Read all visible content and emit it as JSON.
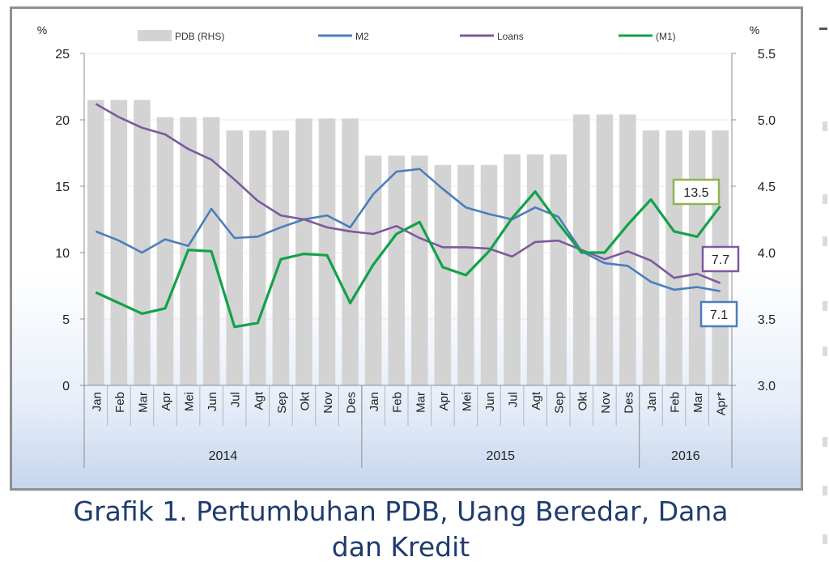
{
  "chart_data": {
    "type": "bar+line",
    "caption_line1": "Grafik 1.  Pertumbuhan PDB, Uang Beredar, Dana",
    "caption_line2": "dan Kredit",
    "y_left_unit": "%",
    "y_right_unit": "%",
    "y_left_range": [
      0,
      25
    ],
    "y_left_ticks": [
      "0",
      "5",
      "10",
      "15",
      "20",
      "25"
    ],
    "y_right_range": [
      3.0,
      5.5
    ],
    "y_right_ticks": [
      "3.0",
      "3.5",
      "4.0",
      "4.5",
      "5.0",
      "5.5"
    ],
    "months": [
      "Jan",
      "Feb",
      "Mar",
      "Apr",
      "Mei",
      "Jun",
      "Jul",
      "Agt",
      "Sep",
      "Okt",
      "Nov",
      "Des",
      "Jan",
      "Feb",
      "Mar",
      "Apr",
      "Mei",
      "Jun",
      "Jul",
      "Agt",
      "Sep",
      "Okt",
      "Nov",
      "Des",
      "Jan",
      "Feb",
      "Mar",
      "Apr*"
    ],
    "years": [
      {
        "label": "2014",
        "count": 12
      },
      {
        "label": "2015",
        "count": 12
      },
      {
        "label": "2016",
        "count": 4
      }
    ],
    "bars": {
      "name": "PDB (RHS)",
      "color": "#d3d3d3",
      "values": [
        5.15,
        5.15,
        5.15,
        5.02,
        5.02,
        5.02,
        4.92,
        4.92,
        4.92,
        5.01,
        5.01,
        5.01,
        4.73,
        4.73,
        4.73,
        4.66,
        4.66,
        4.66,
        4.74,
        4.74,
        4.74,
        5.04,
        5.04,
        5.04,
        4.92,
        4.92,
        4.92,
        4.92
      ]
    },
    "series": [
      {
        "name": "M2",
        "color": "#4a7ebb",
        "values": [
          11.6,
          10.9,
          10.0,
          11.0,
          10.5,
          13.3,
          11.1,
          11.2,
          11.9,
          12.5,
          12.8,
          11.9,
          14.4,
          16.1,
          16.3,
          14.8,
          13.4,
          12.9,
          12.5,
          13.4,
          12.7,
          10.1,
          9.2,
          9.0,
          7.8,
          7.2,
          7.4,
          7.1
        ]
      },
      {
        "name": "Loans",
        "color": "#7b5a9e",
        "values": [
          21.2,
          20.2,
          19.4,
          18.9,
          17.8,
          17.0,
          15.5,
          13.9,
          12.8,
          12.5,
          11.9,
          11.6,
          11.4,
          12.0,
          11.1,
          10.4,
          10.4,
          10.3,
          9.7,
          10.8,
          10.9,
          10.2,
          9.5,
          10.1,
          9.4,
          8.1,
          8.4,
          7.7
        ]
      },
      {
        "name": "(M1)",
        "color": "#12a24a",
        "values": [
          7.0,
          6.2,
          5.4,
          5.8,
          10.2,
          10.1,
          4.4,
          4.7,
          9.5,
          9.9,
          9.8,
          6.2,
          9.1,
          11.4,
          12.3,
          8.9,
          8.3,
          10.1,
          12.6,
          14.6,
          12.2,
          10.0,
          10.0,
          12.1,
          14.0,
          11.6,
          11.2,
          13.5
        ]
      }
    ],
    "end_labels": [
      {
        "series": "(M1)",
        "text": "13.5",
        "border": "#8fb356"
      },
      {
        "series": "Loans",
        "text": "7.7",
        "border": "#7b5a9e"
      },
      {
        "series": "M2",
        "text": "7.1",
        "border": "#4a7ebb"
      }
    ]
  }
}
